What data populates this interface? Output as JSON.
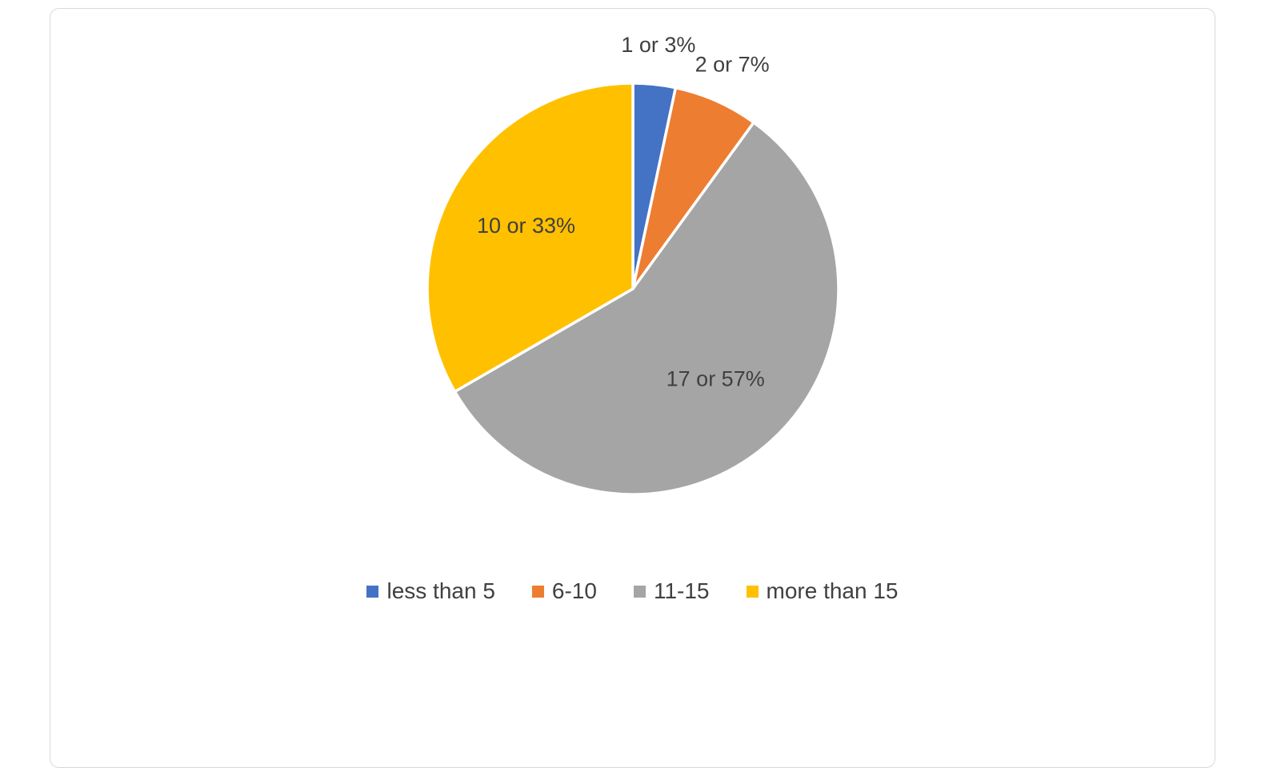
{
  "chart_data": {
    "type": "pie",
    "title": "",
    "categories": [
      "less than 5",
      "6-10",
      "11-15",
      "more than 15"
    ],
    "values": [
      1,
      2,
      17,
      10
    ],
    "percentages": [
      3,
      7,
      57,
      33
    ],
    "data_labels": [
      "1 or 3%",
      "2 or 7%",
      "17 or 57%",
      "10 or 33%"
    ],
    "colors": [
      "#4472C4",
      "#ED7D31",
      "#A5A5A5",
      "#FFC000"
    ],
    "label_color": "#404040",
    "slice_separator_color": "#FFFFFF",
    "frame_border_color": "#D9D9D9",
    "legend_position": "bottom",
    "start_angle_deg": 0,
    "direction": "clockwise"
  }
}
